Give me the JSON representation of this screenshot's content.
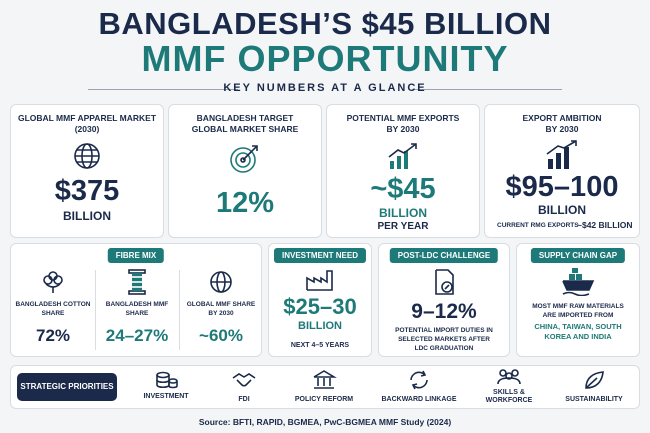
{
  "header": {
    "title_line1": "BANGLADESH’S $45 BILLION",
    "title_line2": "MMF OPPORTUNITY",
    "subtitle": "KEY NUMBERS AT A GLANCE"
  },
  "top_cards": [
    {
      "label1": "GLOBAL MMF APPAREL MARKET",
      "label2": "(2030)",
      "value": "$375",
      "unit": "BILLION"
    },
    {
      "label1": "BANGLADESH TARGET",
      "label2": "GLOBAL MARKET SHARE",
      "value": "12%"
    },
    {
      "label1": "POTENTIAL MMF EXPORTS",
      "label2": "BY 2030",
      "value": "~$45",
      "unit": "BILLION",
      "note": "PER YEAR"
    },
    {
      "label1": "EXPORT AMBITION",
      "label2": "BY 2030",
      "value": "$95–100",
      "unit": "BILLION",
      "note_label": "CURRENT RMG EXPORTS",
      "note_value": "~$42 BILLION"
    }
  ],
  "fibre_mix": {
    "header": "FIBRE MIX",
    "items": [
      {
        "label": "BANGLADESH COTTON SHARE",
        "value": "72%"
      },
      {
        "label": "BANGLADESH MMF SHARE",
        "value": "24–27%"
      },
      {
        "label": "GLOBAL MMF SHARE BY 2030",
        "value": "~60%"
      }
    ]
  },
  "investment": {
    "header": "INVESTMENT NEED",
    "value": "$25–30",
    "unit": "BILLION",
    "note": "NEXT 4–5 YEARS"
  },
  "post_ldc": {
    "header": "POST-LDC CHALLENGE",
    "value": "9–12%",
    "note": "POTENTIAL IMPORT DUTIES IN SELECTED MARKETS AFTER LDC GRADUATION"
  },
  "supply_chain": {
    "header": "SUPPLY CHAIN GAP",
    "note": "MOST MMF RAW MATERIALS ARE IMPORTED FROM",
    "countries": "CHINA, TAIWAN, SOUTH KOREA AND INDIA"
  },
  "priorities": {
    "header": "STRATEGIC PRIORITIES",
    "items": [
      "INVESTMENT",
      "FDI",
      "POLICY REFORM",
      "BACKWARD LINKAGE",
      "SKILLS & WORKFORCE",
      "SUSTAINABILITY"
    ]
  },
  "footer": {
    "source": "Source: BFTI, RAPID, BGMEA, PwC-BGMEA MMF Study (2024)"
  }
}
